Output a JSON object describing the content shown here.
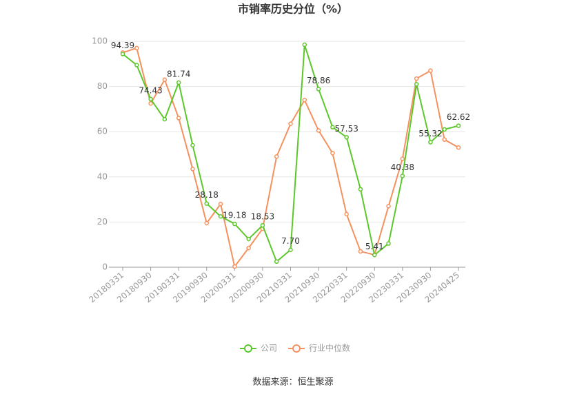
{
  "chart_data": {
    "type": "line",
    "title": "市销率历史分位（%）",
    "categories": [
      "20180331",
      null,
      "20180930",
      null,
      "20190331",
      null,
      "20190930",
      null,
      "20200331",
      null,
      "20200930",
      null,
      "20210331",
      null,
      "20210930",
      null,
      "20220331",
      null,
      "20220930",
      null,
      "20230331",
      null,
      "20230930",
      null,
      "20240425"
    ],
    "series": [
      {
        "name": "公司",
        "color": "#5cc72a",
        "values": [
          94.39,
          89.5,
          74.43,
          65.5,
          81.74,
          54,
          28.18,
          22.5,
          19.18,
          12.5,
          18.53,
          2.5,
          7.7,
          98.5,
          78.86,
          62,
          57.53,
          34.5,
          5.41,
          10.5,
          40.38,
          81,
          55.32,
          61,
          62.62
        ],
        "value_labels": [
          "94.39",
          null,
          "74.43",
          null,
          "81.74",
          null,
          "28.18",
          null,
          "19.18",
          null,
          "18.53",
          null,
          "7.70",
          null,
          "78.86",
          null,
          "57.53",
          null,
          "5.41",
          null,
          "40.38",
          null,
          "55.32",
          null,
          "62.62"
        ]
      },
      {
        "name": "行业中位数",
        "color": "#f5915e",
        "values": [
          95,
          97,
          72.5,
          83,
          66,
          43.5,
          19.5,
          28,
          0.3,
          8.5,
          17,
          49,
          63.5,
          74,
          60.5,
          50.5,
          23.5,
          7,
          5.5,
          27,
          48,
          83.5,
          87,
          56.5,
          53
        ]
      }
    ],
    "ylim": [
      0,
      100
    ],
    "yticks": [
      0,
      20,
      40,
      60,
      80,
      100
    ],
    "grid": true,
    "source": "数据来源：恒生聚源"
  }
}
